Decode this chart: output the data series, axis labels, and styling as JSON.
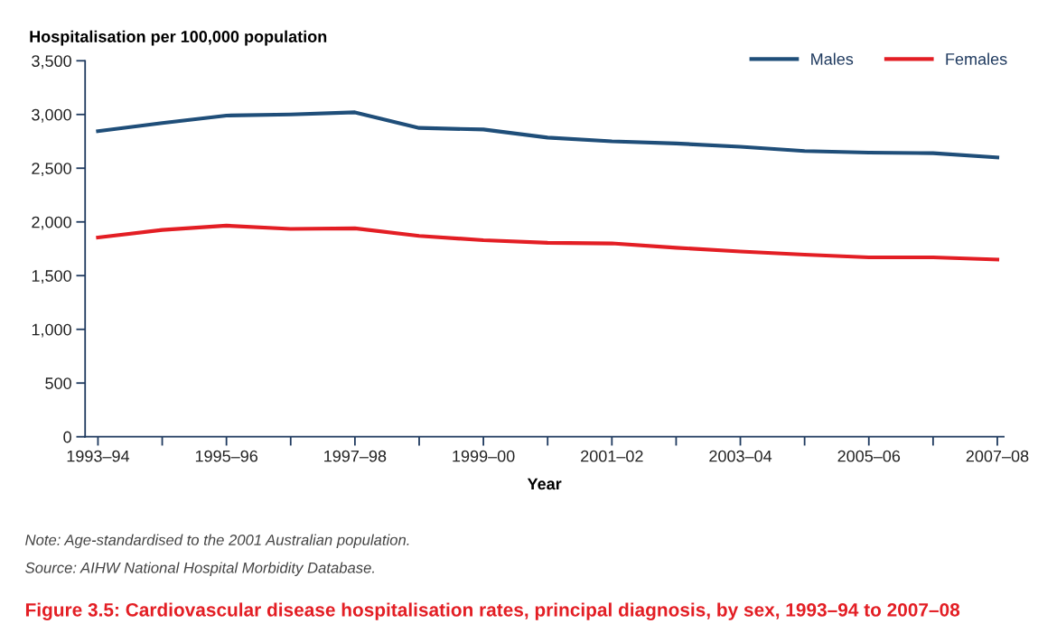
{
  "chart_data": {
    "type": "line",
    "title": "Figure 3.5: Cardiovascular disease hospitalisation rates, principal diagnosis, by sex, 1993–94 to 2007–08",
    "ylabel": "Hospitalisation per 100,000 population",
    "xlabel": "Year",
    "categories": [
      "1993–94",
      null,
      "1995–96",
      null,
      "1997–98",
      null,
      "1999–00",
      null,
      "2001–02",
      null,
      "2003–04",
      null,
      "2005–06",
      null,
      "2007–08"
    ],
    "series": [
      {
        "name": "Males",
        "color": "#1f4e79",
        "values": [
          2845,
          2920,
          2990,
          3000,
          3020,
          2875,
          2860,
          2785,
          2750,
          2730,
          2700,
          2660,
          2645,
          2640,
          2600
        ]
      },
      {
        "name": "Females",
        "color": "#e31e24",
        "values": [
          1855,
          1925,
          1965,
          1935,
          1940,
          1870,
          1830,
          1805,
          1800,
          1760,
          1725,
          1695,
          1670,
          1670,
          1650
        ]
      }
    ],
    "ylim": [
      0,
      3500
    ],
    "yticks": [
      0,
      {
        "value": 500,
        "label": "500"
      },
      {
        "value": 1000,
        "label": "1,000"
      },
      {
        "value": 1500,
        "label": "1,500"
      },
      {
        "value": 2000,
        "label": "2,000"
      },
      {
        "value": 2500,
        "label": "2,500"
      },
      {
        "value": 3000,
        "label": "3,000"
      },
      {
        "value": 3500,
        "label": "3,500"
      }
    ],
    "legend": "top right",
    "grid": false,
    "marker": "none",
    "line_style": "solid",
    "annotations": [
      "Note: Age-standardised to the 2001 Australian population.",
      "Source: AIHW National Hospital Morbidity Database."
    ]
  }
}
